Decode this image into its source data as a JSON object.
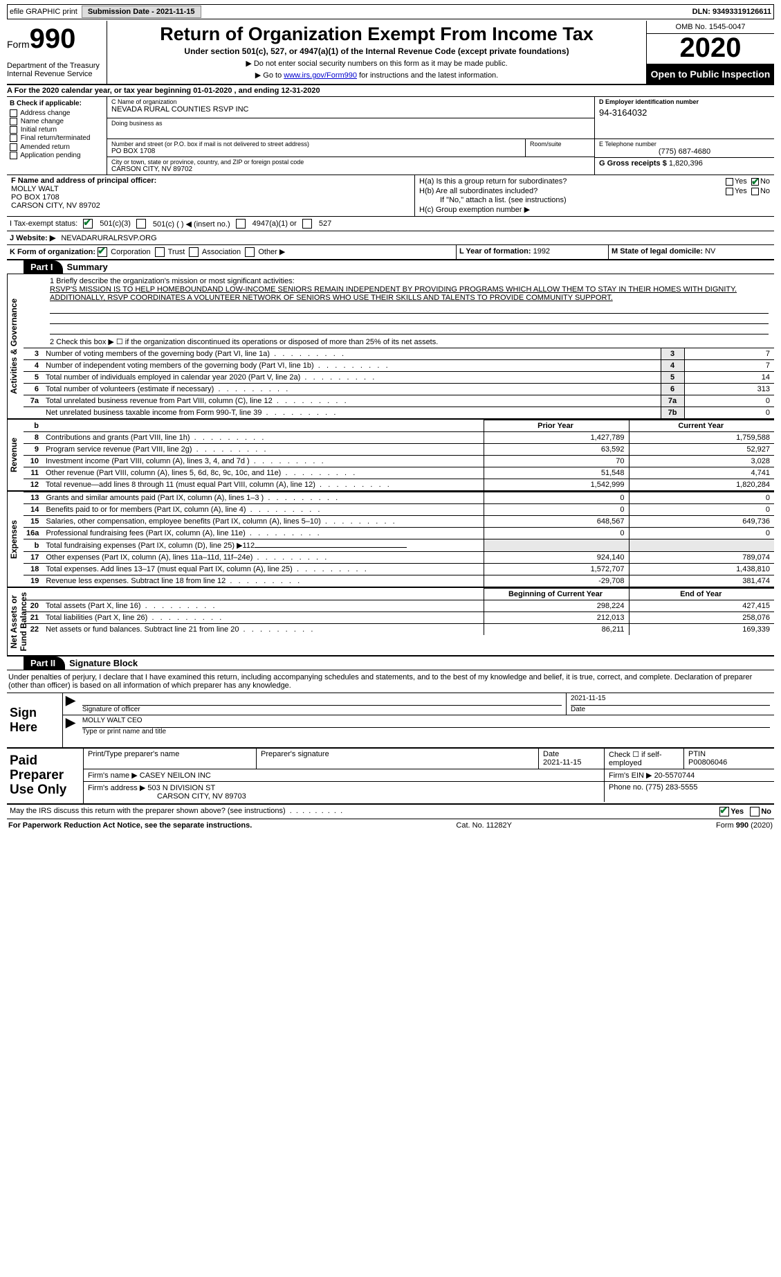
{
  "topbar": {
    "efile": "efile GRAPHIC print",
    "submission_label": "Submission Date - 2021-11-15",
    "dln": "DLN: 93493319126611"
  },
  "header": {
    "form_word": "Form",
    "form_num": "990",
    "dept": "Department of the Treasury\nInternal Revenue Service",
    "title": "Return of Organization Exempt From Income Tax",
    "subtitle": "Under section 501(c), 527, or 4947(a)(1) of the Internal Revenue Code (except private foundations)",
    "note1": "▶ Do not enter social security numbers on this form as it may be made public.",
    "note2_pre": "▶ Go to ",
    "note2_link": "www.irs.gov/Form990",
    "note2_post": " for instructions and the latest information.",
    "omb": "OMB No. 1545-0047",
    "year": "2020",
    "inspect": "Open to Public Inspection"
  },
  "row_a": "A  For the 2020 calendar year, or tax year beginning 01-01-2020   , and ending 12-31-2020",
  "box_b": {
    "hdr": "B Check if applicable:",
    "items": [
      "Address change",
      "Name change",
      "Initial return",
      "Final return/terminated",
      "Amended return",
      "Application pending"
    ]
  },
  "box_c": {
    "label": "C Name of organization",
    "name": "NEVADA RURAL COUNTIES RSVP INC",
    "dba_label": "Doing business as",
    "addr_label": "Number and street (or P.O. box if mail is not delivered to street address)",
    "room_label": "Room/suite",
    "addr": "PO BOX 1708",
    "city_label": "City or town, state or province, country, and ZIP or foreign postal code",
    "city": "CARSON CITY, NV  89702"
  },
  "box_d": {
    "label": "D Employer identification number",
    "val": "94-3164032"
  },
  "box_e": {
    "label": "E Telephone number",
    "val": "(775) 687-4680"
  },
  "box_g": {
    "label": "G Gross receipts $",
    "val": "1,820,396"
  },
  "box_f": {
    "label": "F  Name and address of principal officer:",
    "name": "MOLLY WALT",
    "addr1": "PO BOX 1708",
    "addr2": "CARSON CITY, NV  89702"
  },
  "box_h": {
    "a": "H(a)  Is this a group return for subordinates?",
    "b": "H(b)  Are all subordinates included?",
    "note": "If \"No,\" attach a list. (see instructions)",
    "c": "H(c)  Group exemption number ▶",
    "yes": "Yes",
    "no": "No"
  },
  "row_i": {
    "label": "I   Tax-exempt status:",
    "o1": "501(c)(3)",
    "o2": "501(c) (  ) ◀ (insert no.)",
    "o3": "4947(a)(1) or",
    "o4": "527"
  },
  "row_j": {
    "label": "J   Website: ▶",
    "val": "NEVADARURALRSVP.ORG"
  },
  "row_k": {
    "label": "K Form of organization:",
    "opts": [
      "Corporation",
      "Trust",
      "Association",
      "Other ▶"
    ]
  },
  "row_l": {
    "label": "L Year of formation:",
    "val": "1992"
  },
  "row_m": {
    "label": "M State of legal domicile:",
    "val": "NV"
  },
  "parts": {
    "p1": "Part I",
    "p1t": "Summary",
    "p2": "Part II",
    "p2t": "Signature Block"
  },
  "sideLabels": {
    "ag": "Activities & Governance",
    "rev": "Revenue",
    "exp": "Expenses",
    "na": "Net Assets or\nFund Balances"
  },
  "p1": {
    "line1_label": "1   Briefly describe the organization's mission or most significant activities:",
    "mission": "RSVP'S MISSION IS TO HELP HOMEBOUNDAND LOW-INCOME SENIORS REMAIN INDEPENDENT BY PROVIDING PROGRAMS WHICH ALLOW THEM TO STAY IN THEIR HOMES WITH DIGNITY. ADDITIONALLY, RSVP COORDINATES A VOLUNTEER NETWORK OF SENIORS WHO USE THEIR SKILLS AND TALENTS TO PROVIDE COMMUNITY SUPPORT.",
    "line2": "2   Check this box ▶ ☐ if the organization discontinued its operations or disposed of more than 25% of its net assets.",
    "rows_single": [
      {
        "n": "3",
        "d": "Number of voting members of the governing body (Part VI, line 1a)",
        "b": "3",
        "v": "7"
      },
      {
        "n": "4",
        "d": "Number of independent voting members of the governing body (Part VI, line 1b)",
        "b": "4",
        "v": "7"
      },
      {
        "n": "5",
        "d": "Total number of individuals employed in calendar year 2020 (Part V, line 2a)",
        "b": "5",
        "v": "14"
      },
      {
        "n": "6",
        "d": "Total number of volunteers (estimate if necessary)",
        "b": "6",
        "v": "313"
      },
      {
        "n": "7a",
        "d": "Total unrelated business revenue from Part VIII, column (C), line 12",
        "b": "7a",
        "v": "0"
      },
      {
        "n": "",
        "d": "Net unrelated business taxable income from Form 990-T, line 39",
        "b": "7b",
        "v": "0"
      }
    ],
    "colhdr_prior": "Prior Year",
    "colhdr_curr": "Current Year",
    "rev_rows": [
      {
        "n": "8",
        "d": "Contributions and grants (Part VIII, line 1h)",
        "p": "1,427,789",
        "c": "1,759,588"
      },
      {
        "n": "9",
        "d": "Program service revenue (Part VIII, line 2g)",
        "p": "63,592",
        "c": "52,927"
      },
      {
        "n": "10",
        "d": "Investment income (Part VIII, column (A), lines 3, 4, and 7d )",
        "p": "70",
        "c": "3,028"
      },
      {
        "n": "11",
        "d": "Other revenue (Part VIII, column (A), lines 5, 6d, 8c, 9c, 10c, and 11e)",
        "p": "51,548",
        "c": "4,741"
      },
      {
        "n": "12",
        "d": "Total revenue—add lines 8 through 11 (must equal Part VIII, column (A), line 12)",
        "p": "1,542,999",
        "c": "1,820,284"
      }
    ],
    "exp_rows": [
      {
        "n": "13",
        "d": "Grants and similar amounts paid (Part IX, column (A), lines 1–3 )",
        "p": "0",
        "c": "0"
      },
      {
        "n": "14",
        "d": "Benefits paid to or for members (Part IX, column (A), line 4)",
        "p": "0",
        "c": "0"
      },
      {
        "n": "15",
        "d": "Salaries, other compensation, employee benefits (Part IX, column (A), lines 5–10)",
        "p": "648,567",
        "c": "649,736"
      },
      {
        "n": "16a",
        "d": "Professional fundraising fees (Part IX, column (A), line 11e)",
        "p": "0",
        "c": "0"
      },
      {
        "n": "b",
        "d": "Total fundraising expenses (Part IX, column (D), line 25) ▶112",
        "p": "",
        "c": "",
        "noval": true
      },
      {
        "n": "17",
        "d": "Other expenses (Part IX, column (A), lines 11a–11d, 11f–24e)",
        "p": "924,140",
        "c": "789,074"
      },
      {
        "n": "18",
        "d": "Total expenses. Add lines 13–17 (must equal Part IX, column (A), line 25)",
        "p": "1,572,707",
        "c": "1,438,810"
      },
      {
        "n": "19",
        "d": "Revenue less expenses. Subtract line 18 from line 12",
        "p": "-29,708",
        "c": "381,474"
      }
    ],
    "na_hdr_beg": "Beginning of Current Year",
    "na_hdr_end": "End of Year",
    "na_rows": [
      {
        "n": "20",
        "d": "Total assets (Part X, line 16)",
        "p": "298,224",
        "c": "427,415"
      },
      {
        "n": "21",
        "d": "Total liabilities (Part X, line 26)",
        "p": "212,013",
        "c": "258,076"
      },
      {
        "n": "22",
        "d": "Net assets or fund balances. Subtract line 21 from line 20",
        "p": "86,211",
        "c": "169,339"
      }
    ]
  },
  "sig": {
    "decl": "Under penalties of perjury, I declare that I have examined this return, including accompanying schedules and statements, and to the best of my knowledge and belief, it is true, correct, and complete. Declaration of preparer (other than officer) is based on all information of which preparer has any knowledge.",
    "sign_here": "Sign Here",
    "sig_officer": "Signature of officer",
    "date": "Date",
    "date_val": "2021-11-15",
    "name_title": "MOLLY WALT CEO",
    "type_name": "Type or print name and title"
  },
  "prep": {
    "label": "Paid Preparer Use Only",
    "print_name": "Print/Type preparer's name",
    "sig": "Preparer's signature",
    "date": "Date",
    "date_val": "2021-11-15",
    "check_label": "Check ☐ if self-employed",
    "ptin_label": "PTIN",
    "ptin": "P00806046",
    "firm_name_label": "Firm's name   ▶",
    "firm_name": "CASEY NEILON INC",
    "firm_ein_label": "Firm's EIN ▶",
    "firm_ein": "20-5570744",
    "firm_addr_label": "Firm's address ▶",
    "firm_addr": "503 N DIVISION ST",
    "firm_city": "CARSON CITY, NV  89703",
    "phone_label": "Phone no.",
    "phone": "(775) 283-5555"
  },
  "discuss": {
    "q": "May the IRS discuss this return with the preparer shown above? (see instructions)",
    "yes": "Yes",
    "no": "No"
  },
  "footer": {
    "l": "For Paperwork Reduction Act Notice, see the separate instructions.",
    "m": "Cat. No. 11282Y",
    "r": "Form 990 (2020)"
  },
  "style": {
    "colors": {
      "bg": "#ffffff",
      "text": "#000000",
      "border": "#000000",
      "shade": "#e8e8e8",
      "link": "#0000cc",
      "check": "#0a7a2f"
    },
    "fontsizes": {
      "body": 11,
      "title": 27,
      "year": 40,
      "form_num": 40,
      "part": 13
    }
  }
}
